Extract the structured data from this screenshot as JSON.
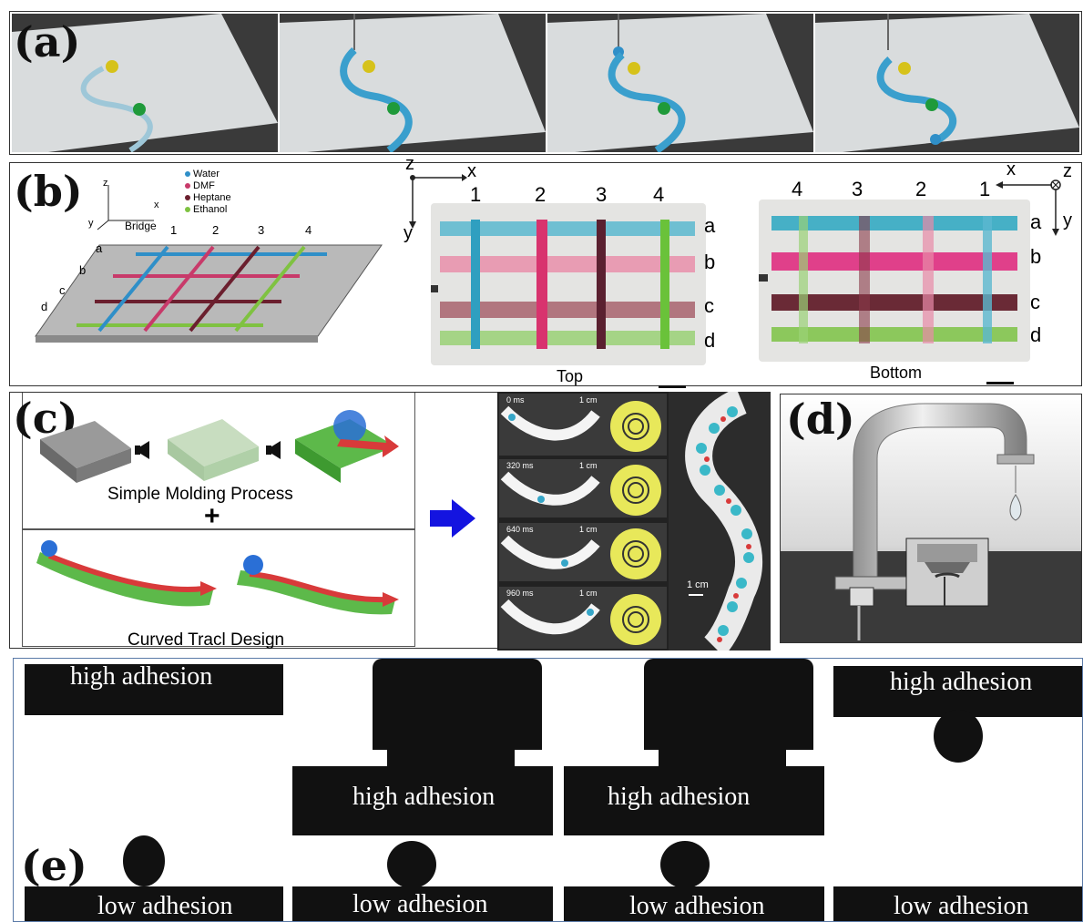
{
  "panel_a": {
    "label": "(a)"
  },
  "panel_b": {
    "label": "(b)",
    "legend": [
      {
        "name": "Water",
        "color": "#2f8fc8"
      },
      {
        "name": "DMF",
        "color": "#c83a6a"
      },
      {
        "name": "Heptane",
        "color": "#6b1f2e"
      },
      {
        "name": "Ethanol",
        "color": "#7fc241"
      }
    ],
    "diagram": {
      "axes": {
        "z": "z",
        "x": "x",
        "y": "y"
      },
      "bridge": "Bridge",
      "columns": [
        "1",
        "2",
        "3",
        "4"
      ],
      "rows": [
        "a",
        "b",
        "c",
        "d"
      ]
    },
    "top": {
      "axes": {
        "z": "z",
        "x": "x",
        "y": "y"
      },
      "columns": [
        "1",
        "2",
        "3",
        "4"
      ],
      "rows": [
        "a",
        "b",
        "c",
        "d"
      ],
      "caption": "Top"
    },
    "bottom": {
      "axes": {
        "x": "x",
        "z": "z",
        "y": "y"
      },
      "columns": [
        "4",
        "3",
        "2",
        "1"
      ],
      "rows": [
        "a",
        "b",
        "c",
        "d"
      ],
      "caption": "Bottom"
    }
  },
  "panel_c": {
    "label": "(c)",
    "molding_caption": "Simple Molding Process",
    "plus": "+",
    "track_caption": "Curved Tracl Design",
    "frames": [
      {
        "time": "0 ms",
        "scale": "1 cm"
      },
      {
        "time": "320 ms",
        "scale": "1 cm"
      },
      {
        "time": "640 ms",
        "scale": "1 cm"
      },
      {
        "time": "960 ms",
        "scale": "1 cm"
      }
    ],
    "s_track_scale": "1 cm"
  },
  "panel_d": {
    "label": "(d)"
  },
  "panel_e": {
    "label": "(e)",
    "frames": [
      {
        "top": "high adhesion",
        "bottom": "low adhesion"
      },
      {
        "top": "high adhesion",
        "bottom": "low adhesion"
      },
      {
        "top": "high adhesion",
        "bottom": "low adhesion"
      },
      {
        "top": "high adhesion",
        "bottom": "low adhesion"
      }
    ]
  }
}
